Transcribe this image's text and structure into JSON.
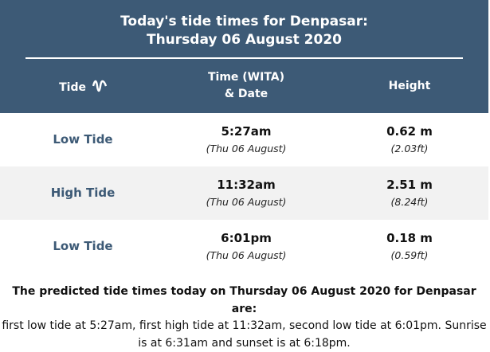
{
  "header": {
    "title_line1": "Today's tide times for Denpasar:",
    "title_line2": "Thursday 06 August 2020"
  },
  "table": {
    "columns": {
      "tide": "Tide",
      "time": [
        "Time (WITA)",
        "& Date"
      ],
      "height": "Height"
    },
    "rows": [
      {
        "tide": "Low Tide",
        "time": "5:27am",
        "date": "(Thu 06 August)",
        "height": "0.62 m",
        "height_ft": "(2.03ft)"
      },
      {
        "tide": "High Tide",
        "time": "11:32am",
        "date": "(Thu 06 August)",
        "height": "2.51 m",
        "height_ft": "(8.24ft)"
      },
      {
        "tide": "Low Tide",
        "time": "6:01pm",
        "date": "(Thu 06 August)",
        "height": "0.18 m",
        "height_ft": "(0.59ft)"
      }
    ]
  },
  "footer": {
    "lead": "The predicted tide times today on Thursday 06 August 2020 for Denpasar are:",
    "text": "first low tide at 5:27am, first high tide at 11:32am, second low tide at 6:01pm. Sunrise is at 6:31am and sunset is at 6:18pm."
  }
}
